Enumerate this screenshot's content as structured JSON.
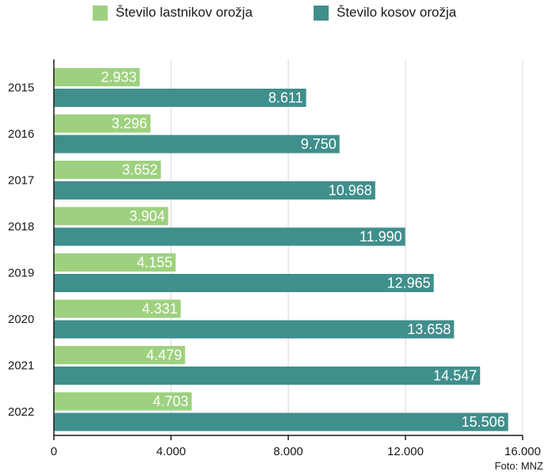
{
  "chart_data": {
    "type": "bar",
    "orientation": "horizontal",
    "categories": [
      "2015",
      "2016",
      "2017",
      "2018",
      "2019",
      "2020",
      "2021",
      "2022"
    ],
    "series": [
      {
        "name": "Število lastnikov orožja",
        "color": "#9ed17f",
        "values": [
          2933,
          3296,
          3652,
          3904,
          4155,
          4331,
          4479,
          4703
        ],
        "labels": [
          "2.933",
          "3.296",
          "3.652",
          "3.904",
          "4.155",
          "4.331",
          "4.479",
          "4.703"
        ]
      },
      {
        "name": "Število kosov orožja",
        "color": "#3f8f8c",
        "values": [
          8611,
          9750,
          10968,
          11990,
          12965,
          13658,
          14547,
          15506
        ],
        "labels": [
          "8.611",
          "9.750",
          "10.968",
          "11.990",
          "12.965",
          "13.658",
          "14.547",
          "15.506"
        ]
      }
    ],
    "xlim": [
      0,
      16000
    ],
    "xticks": [
      0,
      4000,
      8000,
      12000,
      16000
    ],
    "xtick_labels": [
      "0",
      "4.000",
      "8.000",
      "12.000",
      "16.000"
    ],
    "grid": "vertical",
    "legend_position": "top"
  },
  "credit": "Foto: MNZ"
}
